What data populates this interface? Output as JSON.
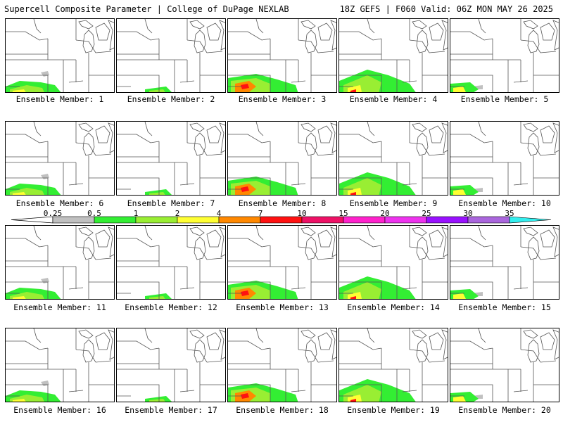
{
  "header": {
    "left": "Supercell Composite Parameter | College of DuPage NEXLAB",
    "right": "18Z GEFS | F060 Valid: 06Z MON MAY 26 2025"
  },
  "panels": [
    {
      "label": "Ensemble Member: 1"
    },
    {
      "label": "Ensemble Member: 2"
    },
    {
      "label": "Ensemble Member: 3"
    },
    {
      "label": "Ensemble Member: 4"
    },
    {
      "label": "Ensemble Member: 5"
    },
    {
      "label": "Ensemble Member: 6"
    },
    {
      "label": "Ensemble Member: 7"
    },
    {
      "label": "Ensemble Member: 8"
    },
    {
      "label": "Ensemble Member: 9"
    },
    {
      "label": "Ensemble Member: 10"
    },
    {
      "label": "Ensemble Member: 11"
    },
    {
      "label": "Ensemble Member: 12"
    },
    {
      "label": "Ensemble Member: 13"
    },
    {
      "label": "Ensemble Member: 14"
    },
    {
      "label": "Ensemble Member: 15"
    },
    {
      "label": "Ensemble Member: 16"
    },
    {
      "label": "Ensemble Member: 17"
    },
    {
      "label": "Ensemble Member: 18"
    },
    {
      "label": "Ensemble Member: 19"
    },
    {
      "label": "Ensemble Member: 20"
    }
  ],
  "colorbar": {
    "labels": [
      "0.25",
      "0.5",
      "1",
      "2",
      "4",
      "7",
      "10",
      "15",
      "20",
      "25",
      "30",
      "35"
    ],
    "colors": [
      "#c0c0c0",
      "#33ee33",
      "#99ee33",
      "#ffff33",
      "#ff8800",
      "#ff1111",
      "#ee1166",
      "#ff22cc",
      "#ee33ee",
      "#9911ff",
      "#aa66dd",
      "#33eeee"
    ]
  }
}
